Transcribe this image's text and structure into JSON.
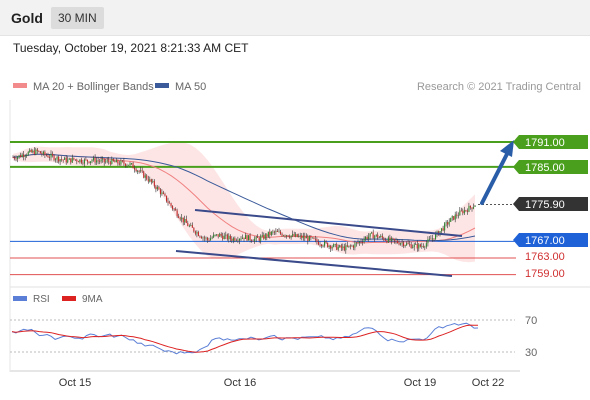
{
  "header": {
    "symbol": "Gold",
    "timeframe": "30 MIN",
    "timestamp": "Tuesday, October 19, 2021 8:21:33 AM CET"
  },
  "chart_data": {
    "type": "candlestick",
    "instrument": "Gold",
    "interval": "30 MIN",
    "credit": "Research © 2021 Trading Central",
    "legend": [
      {
        "name": "MA 20 + Bollinger Bands",
        "color": "#f28b8b"
      },
      {
        "name": "MA 50",
        "color": "#3a5a9a"
      }
    ],
    "price_levels": [
      {
        "label": "1791.00",
        "value": 1791.0,
        "kind": "resistance",
        "color": "#4aa01c"
      },
      {
        "label": "1785.00",
        "value": 1785.0,
        "kind": "resistance",
        "color": "#4aa01c"
      },
      {
        "label": "1775.90",
        "value": 1775.9,
        "kind": "last-price",
        "color": "#333333"
      },
      {
        "label": "1767.00",
        "value": 1767.0,
        "kind": "pivot",
        "color": "#1f62d8"
      },
      {
        "label": "1763.00",
        "value": 1763.0,
        "kind": "support",
        "color": "#e05050"
      },
      {
        "label": "1759.00",
        "value": 1759.0,
        "kind": "support",
        "color": "#e05050"
      }
    ],
    "x_tick_labels": [
      "Oct 15",
      "Oct 16",
      "Oct 19",
      "Oct 22"
    ],
    "rsi": {
      "legend": [
        {
          "name": "RSI",
          "color": "#5b7fd6"
        },
        {
          "name": "9MA",
          "color": "#dd2222"
        }
      ],
      "levels": [
        "70",
        "30"
      ]
    },
    "prices": [
      1787.3,
      1787.6,
      1788.2,
      1788.5,
      1788.7,
      1788.0,
      1787.6,
      1787.2,
      1786.8,
      1786.5,
      1786.8,
      1786.6,
      1786.4,
      1786.7,
      1786.5,
      1786.2,
      1786.3,
      1786.0,
      1785.9,
      1785.7,
      1784.9,
      1783.6,
      1782.3,
      1780.9,
      1779.4,
      1777.5,
      1775.6,
      1773.8,
      1772.1,
      1770.6,
      1769.5,
      1768.3,
      1767.4,
      1768.2,
      1768.5,
      1768.0,
      1767.6,
      1767.9,
      1768.1,
      1767.7,
      1767.5,
      1767.9,
      1768.7,
      1769.2,
      1768.9,
      1768.7,
      1768.3,
      1768.1,
      1767.9,
      1767.5,
      1766.9,
      1766.5,
      1766.1,
      1765.7,
      1765.4,
      1765.5,
      1766.0,
      1766.9,
      1767.9,
      1768.5,
      1768.2,
      1767.7,
      1767.2,
      1766.9,
      1766.7,
      1766.2,
      1765.9,
      1765.8,
      1766.6,
      1767.8,
      1769.1,
      1770.7,
      1772.2,
      1773.4,
      1774.3,
      1775.0,
      1775.9
    ]
  }
}
